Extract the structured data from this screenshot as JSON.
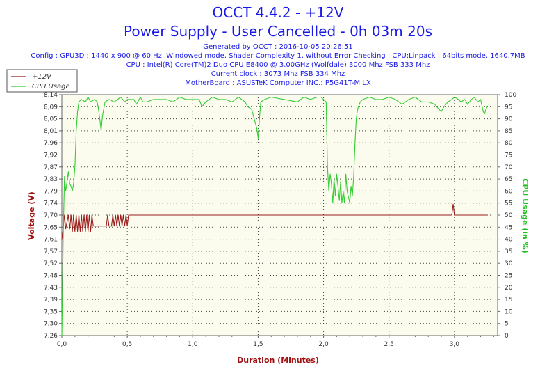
{
  "header": {
    "title": "OCCT 4.4.2 - +12V",
    "subtitle": "Power Supply - User Cancelled - 0h 03m 20s",
    "generated": "Generated by OCCT : 2016-10-05 20:26:51",
    "config": "Config : GPU3D : 1440 x 900 @ 60 Hz, Windowed mode, Shader Complexity 1, without Error Checking ; CPU:Linpack : 64bits mode, 1640,7MB",
    "cpu": "CPU : Intel(R) Core(TM)2 Duo CPU E8400 @ 3.00GHz (Wolfdale) 3000 Mhz FSB 333 Mhz",
    "clock": "Current clock : 3073 Mhz FSB 334 Mhz",
    "motherboard": "MotherBoard : ASUSTeK Computer INC.: P5G41T-M LX"
  },
  "colors": {
    "voltage": "#9b1c1c",
    "cpu": "#33cc33",
    "grid": "#444444",
    "plot_bg": "#fcfcee"
  },
  "chart_data": {
    "type": "line",
    "xlabel": "Duration (Minutes)",
    "ylabel_left": "Voltage (V)",
    "ylabel_right": "CPU Usage (in %)",
    "xlim": [
      0,
      3.33
    ],
    "ylim_left": [
      7.26,
      8.14
    ],
    "ylim_right": [
      0,
      100
    ],
    "x_ticks": [
      "0,0",
      "0,5",
      "1,0",
      "1,5",
      "2,0",
      "2,5",
      "3,0"
    ],
    "y_left_ticks": [
      "8,14",
      "8,09",
      "8,05",
      "8,01",
      "7,96",
      "7,92",
      "7,87",
      "7,83",
      "7,79",
      "7,74",
      "7,70",
      "7,65",
      "7,61",
      "7,57",
      "7,52",
      "7,48",
      "7,43",
      "7,39",
      "7,35",
      "7,30",
      "7,26"
    ],
    "y_right_ticks": [
      "100",
      "95",
      "90",
      "85",
      "80",
      "75",
      "70",
      "65",
      "60",
      "55",
      "50",
      "45",
      "40",
      "35",
      "30",
      "25",
      "20",
      "15",
      "10",
      "5",
      "0"
    ],
    "grid": true,
    "legend_position": "top-left",
    "series": [
      {
        "name": "+12V",
        "axis": "left",
        "points": [
          [
            0,
            7.61
          ],
          [
            0.01,
            7.65
          ],
          [
            0.02,
            7.7
          ],
          [
            0.03,
            7.65
          ],
          [
            0.05,
            7.7
          ],
          [
            0.06,
            7.65
          ],
          [
            0.07,
            7.7
          ],
          [
            0.08,
            7.64
          ],
          [
            0.09,
            7.7
          ],
          [
            0.1,
            7.64
          ],
          [
            0.11,
            7.7
          ],
          [
            0.12,
            7.64
          ],
          [
            0.13,
            7.7
          ],
          [
            0.14,
            7.64
          ],
          [
            0.15,
            7.7
          ],
          [
            0.16,
            7.64
          ],
          [
            0.17,
            7.7
          ],
          [
            0.18,
            7.64
          ],
          [
            0.19,
            7.7
          ],
          [
            0.2,
            7.64
          ],
          [
            0.21,
            7.7
          ],
          [
            0.22,
            7.64
          ],
          [
            0.23,
            7.7
          ],
          [
            0.24,
            7.66
          ],
          [
            0.25,
            7.66
          ],
          [
            0.3,
            7.66
          ],
          [
            0.34,
            7.66
          ],
          [
            0.35,
            7.7
          ],
          [
            0.36,
            7.66
          ],
          [
            0.38,
            7.66
          ],
          [
            0.39,
            7.7
          ],
          [
            0.4,
            7.66
          ],
          [
            0.41,
            7.7
          ],
          [
            0.42,
            7.66
          ],
          [
            0.43,
            7.7
          ],
          [
            0.44,
            7.66
          ],
          [
            0.45,
            7.7
          ],
          [
            0.46,
            7.66
          ],
          [
            0.47,
            7.7
          ],
          [
            0.48,
            7.66
          ],
          [
            0.49,
            7.7
          ],
          [
            0.5,
            7.66
          ],
          [
            0.51,
            7.7
          ],
          [
            0.52,
            7.7
          ],
          [
            1.0,
            7.7
          ],
          [
            2.0,
            7.7
          ],
          [
            2.98,
            7.7
          ],
          [
            2.99,
            7.74
          ],
          [
            3.0,
            7.7
          ],
          [
            3.25,
            7.7
          ]
        ]
      },
      {
        "name": "CPU Usage",
        "axis": "right",
        "points": [
          [
            0,
            0
          ],
          [
            0.01,
            40
          ],
          [
            0.02,
            66
          ],
          [
            0.03,
            60
          ],
          [
            0.05,
            68
          ],
          [
            0.06,
            63
          ],
          [
            0.07,
            62
          ],
          [
            0.08,
            60
          ],
          [
            0.09,
            63
          ],
          [
            0.1,
            70
          ],
          [
            0.11,
            85
          ],
          [
            0.12,
            93
          ],
          [
            0.13,
            97
          ],
          [
            0.15,
            98
          ],
          [
            0.18,
            97
          ],
          [
            0.2,
            99
          ],
          [
            0.22,
            97
          ],
          [
            0.25,
            98
          ],
          [
            0.27,
            97
          ],
          [
            0.28,
            94
          ],
          [
            0.29,
            90
          ],
          [
            0.3,
            85
          ],
          [
            0.31,
            91
          ],
          [
            0.33,
            97
          ],
          [
            0.36,
            98
          ],
          [
            0.4,
            97
          ],
          [
            0.45,
            99
          ],
          [
            0.48,
            97
          ],
          [
            0.5,
            98
          ],
          [
            0.55,
            98
          ],
          [
            0.57,
            96
          ],
          [
            0.6,
            99
          ],
          [
            0.62,
            97
          ],
          [
            0.65,
            97
          ],
          [
            0.7,
            98
          ],
          [
            0.8,
            98
          ],
          [
            0.85,
            97
          ],
          [
            0.9,
            99
          ],
          [
            0.95,
            98
          ],
          [
            1.0,
            98
          ],
          [
            1.05,
            98
          ],
          [
            1.07,
            95
          ],
          [
            1.1,
            97
          ],
          [
            1.15,
            99
          ],
          [
            1.2,
            98
          ],
          [
            1.25,
            98
          ],
          [
            1.3,
            97
          ],
          [
            1.35,
            99
          ],
          [
            1.4,
            97
          ],
          [
            1.42,
            95
          ],
          [
            1.45,
            94
          ],
          [
            1.47,
            90
          ],
          [
            1.49,
            86
          ],
          [
            1.5,
            82
          ],
          [
            1.51,
            90
          ],
          [
            1.52,
            97
          ],
          [
            1.55,
            98
          ],
          [
            1.6,
            99
          ],
          [
            1.7,
            98
          ],
          [
            1.8,
            97
          ],
          [
            1.85,
            99
          ],
          [
            1.9,
            98
          ],
          [
            1.95,
            99
          ],
          [
            1.98,
            99
          ],
          [
            2.0,
            98
          ],
          [
            2.02,
            97
          ],
          [
            2.03,
            70
          ],
          [
            2.04,
            60
          ],
          [
            2.05,
            67
          ],
          [
            2.06,
            63
          ],
          [
            2.07,
            55
          ],
          [
            2.08,
            65
          ],
          [
            2.09,
            58
          ],
          [
            2.1,
            67
          ],
          [
            2.11,
            62
          ],
          [
            2.12,
            56
          ],
          [
            2.13,
            64
          ],
          [
            2.14,
            55
          ],
          [
            2.15,
            60
          ],
          [
            2.16,
            55
          ],
          [
            2.17,
            67
          ],
          [
            2.18,
            60
          ],
          [
            2.2,
            55
          ],
          [
            2.21,
            62
          ],
          [
            2.22,
            58
          ],
          [
            2.23,
            66
          ],
          [
            2.24,
            80
          ],
          [
            2.25,
            90
          ],
          [
            2.26,
            94
          ],
          [
            2.28,
            97
          ],
          [
            2.3,
            98
          ],
          [
            2.35,
            99
          ],
          [
            2.4,
            98
          ],
          [
            2.45,
            98
          ],
          [
            2.5,
            99
          ],
          [
            2.55,
            98
          ],
          [
            2.6,
            96
          ],
          [
            2.65,
            98
          ],
          [
            2.7,
            99
          ],
          [
            2.75,
            97
          ],
          [
            2.8,
            97
          ],
          [
            2.85,
            96
          ],
          [
            2.88,
            94
          ],
          [
            2.9,
            93
          ],
          [
            2.92,
            95
          ],
          [
            2.95,
            97
          ],
          [
            2.98,
            98
          ],
          [
            3.0,
            99
          ],
          [
            3.03,
            98
          ],
          [
            3.05,
            97
          ],
          [
            3.08,
            98
          ],
          [
            3.1,
            96
          ],
          [
            3.13,
            98
          ],
          [
            3.15,
            99
          ],
          [
            3.18,
            97
          ],
          [
            3.2,
            98
          ],
          [
            3.22,
            93
          ],
          [
            3.23,
            92
          ],
          [
            3.24,
            94
          ],
          [
            3.25,
            95
          ]
        ]
      }
    ]
  }
}
